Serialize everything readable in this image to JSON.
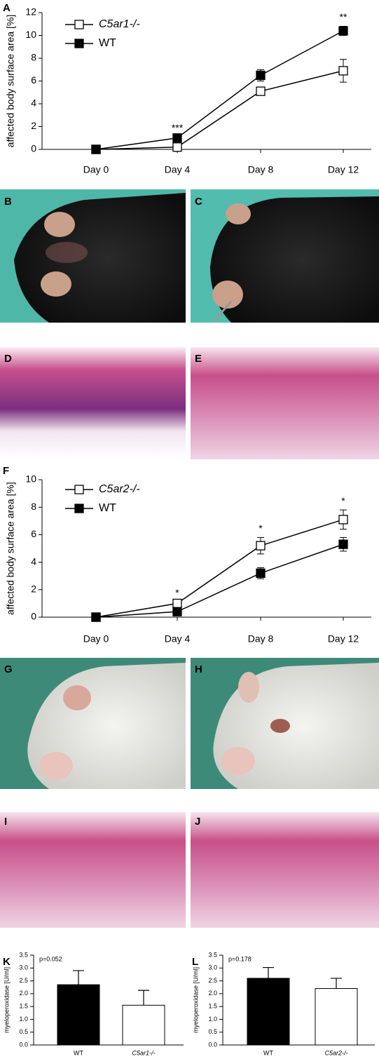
{
  "chart_data": [
    {
      "type": "line",
      "panel": "A",
      "ylabel": "affected body surface area [%]",
      "categories": [
        "Day 0",
        "Day 4",
        "Day 8",
        "Day 12"
      ],
      "series": [
        {
          "name": "C5ar1-/-",
          "color": "#ffffff",
          "values": [
            0,
            0.2,
            5.1,
            6.9
          ],
          "errors": [
            0,
            0.1,
            0.3,
            1.0
          ]
        },
        {
          "name": "WT",
          "color": "#000000",
          "values": [
            0,
            1.0,
            6.5,
            10.4
          ],
          "errors": [
            0,
            0.1,
            0.5,
            0.4
          ]
        }
      ],
      "annotations": [
        {
          "text": "***",
          "x": "Day 4"
        },
        {
          "text": "**",
          "x": "Day 12"
        }
      ],
      "ylim": [
        0,
        12
      ],
      "yticks": [
        0,
        2,
        4,
        6,
        8,
        10,
        12
      ],
      "legend": "upper left"
    },
    {
      "type": "line",
      "panel": "F",
      "ylabel": "affected body surface area [%]",
      "categories": [
        "Day 0",
        "Day 4",
        "Day 8",
        "Day 12"
      ],
      "series": [
        {
          "name": "C5ar2-/-",
          "color": "#ffffff",
          "values": [
            0,
            1.0,
            5.2,
            7.1
          ],
          "errors": [
            0,
            0.1,
            0.6,
            0.7
          ]
        },
        {
          "name": "WT",
          "color": "#000000",
          "values": [
            0,
            0.4,
            3.2,
            5.3
          ],
          "errors": [
            0,
            0.1,
            0.4,
            0.5
          ]
        }
      ],
      "annotations": [
        {
          "text": "*",
          "x": "Day 4"
        },
        {
          "text": "*",
          "x": "Day 8"
        },
        {
          "text": "*",
          "x": "Day 12"
        }
      ],
      "ylim": [
        0,
        10
      ],
      "yticks": [
        0,
        2,
        4,
        6,
        8,
        10
      ],
      "legend": "upper left"
    },
    {
      "type": "bar",
      "panel": "K",
      "ylabel": "myeloperoxidase [U/ml]",
      "note": "p=0.052",
      "categories": [
        "WT",
        "C5ar1-/-"
      ],
      "values": [
        2.35,
        1.55
      ],
      "errors": [
        0.55,
        0.58
      ],
      "colors": [
        "#000000",
        "#ffffff"
      ],
      "ylim": [
        0,
        3.5
      ],
      "yticks": [
        {
          "value": 0,
          "label": "0.0"
        },
        {
          "value": 0.5,
          "label": "0.5"
        },
        {
          "value": 1,
          "label": "1.0"
        },
        {
          "value": 1.5,
          "label": "1.5"
        },
        {
          "value": 2,
          "label": "2.0"
        },
        {
          "value": 2.5,
          "label": "2.5"
        },
        {
          "value": 3,
          "label": "3.0"
        },
        {
          "value": 3.5,
          "label": "3.5"
        }
      ]
    },
    {
      "type": "bar",
      "panel": "L",
      "ylabel": "myeloperoxidase [U/ml]",
      "note": "p=0.178",
      "categories": [
        "WT",
        "C5ar2-/-"
      ],
      "values": [
        2.6,
        2.2
      ],
      "errors": [
        0.42,
        0.4
      ],
      "colors": [
        "#000000",
        "#ffffff"
      ],
      "ylim": [
        0,
        3.5
      ],
      "yticks": [
        {
          "value": 0,
          "label": "0.0"
        },
        {
          "value": 0.5,
          "label": "0.5"
        },
        {
          "value": 1,
          "label": "1.0"
        },
        {
          "value": 1.5,
          "label": "1.5"
        },
        {
          "value": 2,
          "label": "2.0"
        },
        {
          "value": 2.5,
          "label": "2.5"
        },
        {
          "value": 3,
          "label": "3.0"
        },
        {
          "value": 3.5,
          "label": "3.5"
        }
      ]
    }
  ],
  "image_panels": [
    "B",
    "C",
    "D",
    "E",
    "G",
    "H",
    "I",
    "J"
  ]
}
